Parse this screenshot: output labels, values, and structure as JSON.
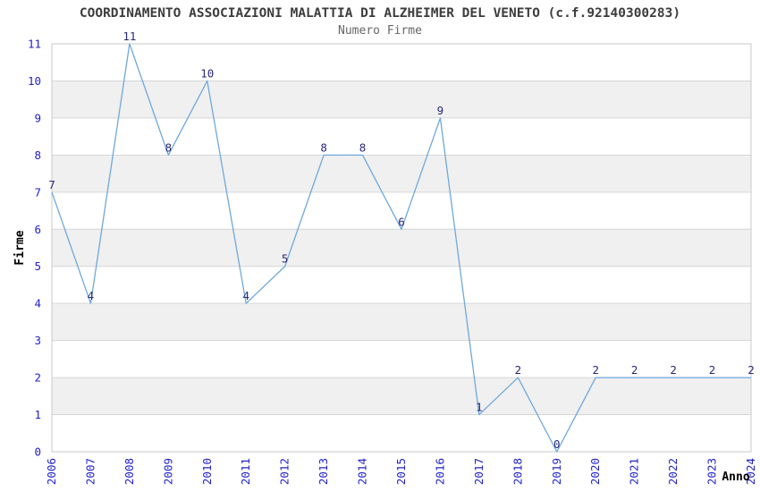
{
  "chart_data": {
    "type": "line",
    "title": "COORDINAMENTO ASSOCIAZIONI MALATTIA DI ALZHEIMER DEL VENETO (c.f.92140300283)",
    "subtitle": "Numero Firme",
    "xlabel": "Anno",
    "ylabel": "Firme",
    "categories": [
      "2006",
      "2007",
      "2008",
      "2009",
      "2010",
      "2011",
      "2012",
      "2013",
      "2014",
      "2015",
      "2016",
      "2017",
      "2018",
      "2019",
      "2020",
      "2021",
      "2022",
      "2023",
      "2024"
    ],
    "values": [
      7,
      4,
      11,
      8,
      10,
      4,
      5,
      8,
      8,
      6,
      9,
      1,
      2,
      0,
      2,
      2,
      2,
      2,
      2
    ],
    "ylim": [
      0,
      11
    ],
    "ytick_step": 1,
    "data_labels_shown": true,
    "legend_position": "none",
    "grid": "horizontal gridlines with alternating shaded bands",
    "colors": {
      "line": "#6fa8dc",
      "tick_label": "#2222cc",
      "data_label": "#29297c",
      "band": "#f0f0f0",
      "gridline": "#d6d6d6",
      "plot_border": "#c9c9c9",
      "title_text": "#3c3c3c",
      "subtitle_text": "#666666",
      "axis_label_text": "#000000",
      "background": "#ffffff"
    }
  }
}
